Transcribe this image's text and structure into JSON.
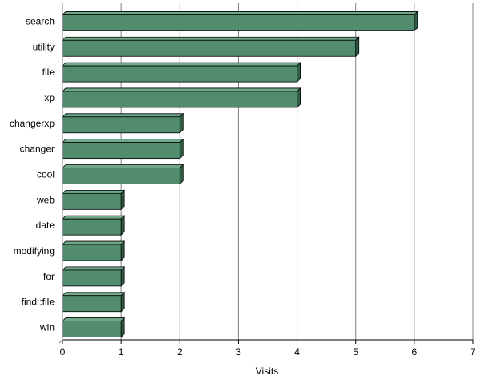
{
  "chart_data": {
    "type": "bar",
    "orientation": "horizontal",
    "bar_style": "3d",
    "categories": [
      "search",
      "utility",
      "file",
      "xp",
      "changerxp",
      "changer",
      "cool",
      "web",
      "date",
      "modifying",
      "for",
      "find::file",
      "win"
    ],
    "values": [
      6,
      5,
      4,
      4,
      2,
      2,
      2,
      1,
      1,
      1,
      1,
      1,
      1
    ],
    "xlabel": "Visits",
    "xlim": [
      0,
      7
    ],
    "x_ticks": [
      0,
      1,
      2,
      3,
      4,
      5,
      6,
      7
    ],
    "grid": "vertical",
    "legend": "none"
  },
  "colors": {
    "bar_front": "#518C6E",
    "bar_top": "#6FA88A",
    "bar_side": "#2F5E45",
    "bar_edge": "#000000",
    "grid": "#808080",
    "background": "#FFFFFF"
  }
}
